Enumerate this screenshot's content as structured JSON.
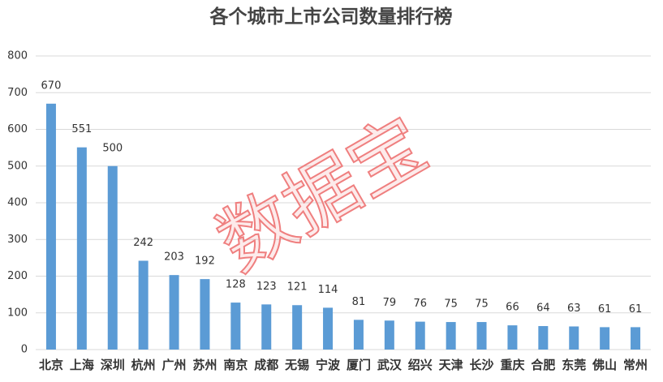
{
  "chart_data": {
    "type": "bar",
    "title": "各个城市上市公司数量排行榜",
    "watermark": "数据宝",
    "categories": [
      "北京",
      "上海",
      "深圳",
      "杭州",
      "广州",
      "苏州",
      "南京",
      "成都",
      "无锡",
      "宁波",
      "厦门",
      "武汉",
      "绍兴",
      "天津",
      "长沙",
      "重庆",
      "合肥",
      "东莞",
      "佛山",
      "常州"
    ],
    "values": [
      670,
      551,
      500,
      242,
      203,
      192,
      128,
      123,
      121,
      114,
      81,
      79,
      76,
      75,
      75,
      66,
      64,
      63,
      61,
      61
    ],
    "color": "#5b9bd5",
    "ylim": [
      0,
      800
    ],
    "yticks": [
      0,
      100,
      200,
      300,
      400,
      500,
      600,
      700,
      800
    ],
    "grid": true
  }
}
